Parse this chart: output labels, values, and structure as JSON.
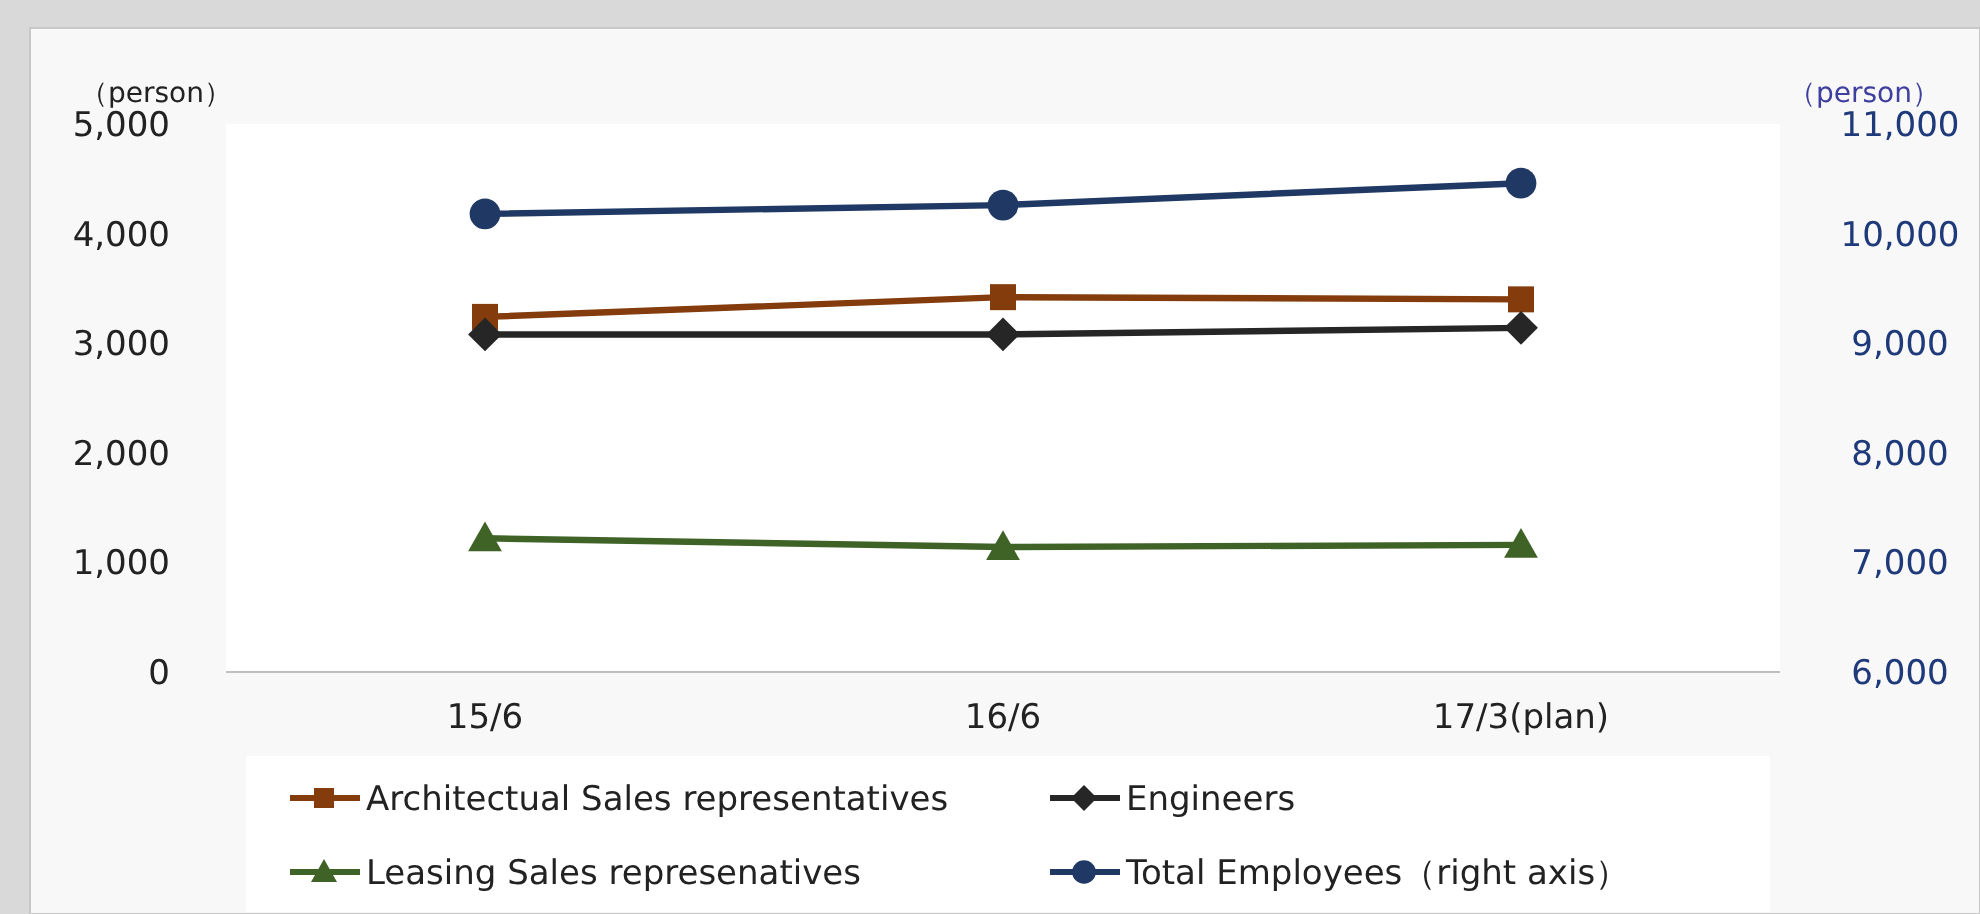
{
  "chart_data": {
    "type": "line",
    "ylabel": "（person）",
    "y2label": "（person）",
    "categories": [
      "15/6",
      "16/6",
      "17/3(plan)"
    ],
    "series": [
      {
        "name": "Architectual Sales representatives",
        "color": "#843c0c",
        "marker": "square",
        "values": [
          3240,
          3420,
          3400
        ]
      },
      {
        "name": "Engineers",
        "color": "#262626",
        "marker": "diamond",
        "values": [
          3080,
          3080,
          3140
        ]
      },
      {
        "name": "Leasing Sales represenatives",
        "color": "#3f6326",
        "marker": "triangle",
        "values": [
          1220,
          1140,
          1160
        ]
      },
      {
        "name": "Total Employees（right axis）",
        "color": "#203864",
        "marker": "circle",
        "axis": "y2",
        "values": [
          10180,
          10260,
          10460
        ]
      }
    ],
    "ylim": [
      0,
      5000
    ],
    "yticks": [
      {
        "value": 0,
        "label": "0"
      },
      {
        "value": 1000,
        "label": "1,000"
      },
      {
        "value": 2000,
        "label": "2,000"
      },
      {
        "value": 3000,
        "label": "3,000"
      },
      {
        "value": 4000,
        "label": "4,000"
      },
      {
        "value": 5000,
        "label": "5,000"
      }
    ],
    "y2lim": [
      6000,
      11000
    ],
    "y2ticks": [
      {
        "value": 6000,
        "label": "6,000"
      },
      {
        "value": 7000,
        "label": "7,000"
      },
      {
        "value": 8000,
        "label": "8,000"
      },
      {
        "value": 9000,
        "label": "9,000"
      },
      {
        "value": 10000,
        "label": "10,000"
      },
      {
        "value": 11000,
        "label": "11,000"
      }
    ],
    "legend": "bottom",
    "grid": false,
    "line_style": "solid"
  }
}
